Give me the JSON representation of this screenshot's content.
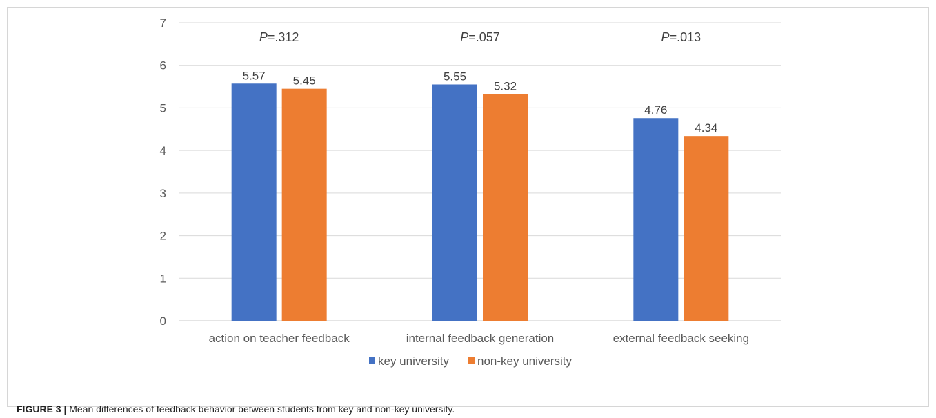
{
  "chart_data": {
    "type": "bar",
    "categories": [
      "action on teacher feedback",
      "internal feedback generation",
      "external feedback seeking"
    ],
    "series": [
      {
        "name": "key university",
        "values": [
          5.57,
          5.55,
          4.76
        ],
        "color": "#4472C4"
      },
      {
        "name": "non-key university",
        "values": [
          5.45,
          5.32,
          4.34
        ],
        "color": "#ED7D31"
      }
    ],
    "data_labels": [
      [
        "5.57",
        "5.45"
      ],
      [
        "5.55",
        "5.32"
      ],
      [
        "4.76",
        "4.34"
      ]
    ],
    "annotations": [
      {
        "prefix": "P",
        "text": "=.312"
      },
      {
        "prefix": "P",
        "text": "=.057"
      },
      {
        "prefix": "P",
        "text": "=.013"
      }
    ],
    "yticks": [
      "0",
      "1",
      "2",
      "3",
      "4",
      "5",
      "6",
      "7"
    ],
    "ylim": [
      0,
      7
    ],
    "grid": true,
    "legend_position": "bottom",
    "title": "",
    "xlabel": "",
    "ylabel": ""
  },
  "caption": {
    "label": "FIGURE 3 |",
    "text": " Mean differences of feedback behavior between students from key and non-key university."
  }
}
